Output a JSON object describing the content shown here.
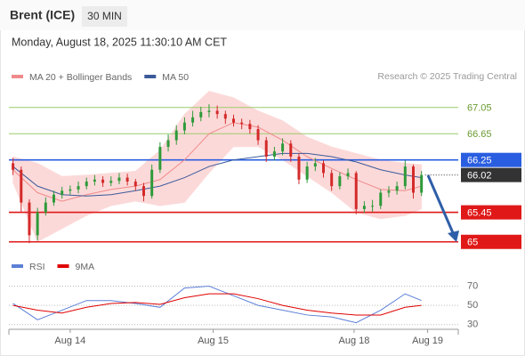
{
  "header": {
    "title": "Brent (ICE)",
    "timeframe": "30 MIN",
    "datetime": "Monday, August 18, 2025 11:30:10 AM CET",
    "source": "Research © 2025 Trading Central"
  },
  "chart_data": [
    {
      "type": "candlestick",
      "x": [
        1,
        3,
        5,
        7,
        9,
        11,
        13,
        15,
        17,
        19,
        21,
        23,
        25,
        27,
        29,
        31,
        33,
        35,
        37,
        39,
        41,
        43,
        45,
        47,
        49,
        51,
        53,
        55,
        57,
        59,
        61,
        63,
        65,
        67,
        69,
        71,
        73,
        75,
        77,
        79,
        81,
        83,
        85,
        87,
        89,
        91,
        93,
        95,
        97,
        99,
        101
      ],
      "open": [
        66.2,
        66.1,
        65.6,
        65.1,
        65.45,
        65.6,
        65.72,
        65.78,
        65.8,
        65.85,
        65.92,
        65.95,
        65.9,
        65.93,
        65.98,
        65.92,
        65.85,
        65.7,
        66.1,
        66.45,
        66.55,
        66.7,
        66.82,
        66.9,
        66.98,
        67.0,
        66.95,
        66.88,
        66.82,
        66.8,
        66.72,
        66.55,
        66.3,
        66.38,
        66.5,
        66.3,
        65.95,
        66.15,
        66.2,
        66.05,
        65.85,
        66.0,
        66.05,
        65.5,
        65.55,
        65.55,
        65.75,
        65.78,
        65.85,
        66.15,
        65.75
      ],
      "high": [
        66.28,
        66.15,
        65.65,
        65.52,
        65.68,
        65.78,
        65.84,
        65.86,
        65.92,
        65.98,
        66.02,
        66.0,
        66.0,
        66.05,
        66.04,
        65.96,
        65.9,
        66.18,
        66.52,
        66.64,
        66.78,
        66.9,
        67.0,
        67.06,
        67.1,
        67.08,
        67.0,
        66.94,
        66.88,
        66.86,
        66.78,
        66.6,
        66.45,
        66.58,
        66.55,
        66.35,
        66.22,
        66.28,
        66.24,
        66.1,
        66.06,
        66.12,
        66.08,
        65.62,
        65.64,
        65.8,
        65.85,
        65.92,
        66.24,
        66.18,
        66.08
      ],
      "low": [
        66.02,
        65.45,
        64.98,
        65.02,
        65.4,
        65.55,
        65.66,
        65.72,
        65.74,
        65.8,
        65.86,
        65.84,
        65.85,
        65.88,
        65.86,
        65.78,
        65.62,
        65.66,
        66.05,
        66.38,
        66.48,
        66.64,
        66.76,
        66.84,
        66.9,
        66.88,
        66.8,
        66.76,
        66.72,
        66.65,
        66.48,
        66.22,
        66.24,
        66.32,
        66.22,
        65.88,
        65.9,
        66.08,
        65.98,
        65.78,
        65.8,
        65.95,
        65.42,
        65.44,
        65.46,
        65.5,
        65.68,
        65.72,
        65.8,
        65.66,
        65.7
      ],
      "close": [
        66.1,
        65.6,
        65.1,
        65.45,
        65.6,
        65.72,
        65.78,
        65.8,
        65.85,
        65.92,
        65.95,
        65.9,
        65.93,
        65.98,
        65.92,
        65.85,
        65.7,
        66.1,
        66.45,
        66.55,
        66.7,
        66.82,
        66.9,
        66.98,
        67.0,
        66.95,
        66.88,
        66.82,
        66.8,
        66.72,
        66.55,
        66.3,
        66.38,
        66.5,
        66.3,
        65.95,
        66.15,
        66.2,
        66.05,
        65.85,
        66.0,
        66.05,
        65.5,
        65.55,
        65.55,
        65.75,
        65.78,
        65.85,
        66.15,
        65.75,
        66.02
      ],
      "up_color": "#2e9a3a",
      "down_color": "#d42a2a",
      "xlim": [
        0,
        110
      ],
      "ylim": [
        64.82,
        67.4
      ],
      "xticks": [
        {
          "value": 15,
          "label": "Aug 14"
        },
        {
          "value": 50,
          "label": "Aug 15"
        },
        {
          "value": 84.5,
          "label": "Aug 18"
        },
        {
          "value": 102.5,
          "label": "Aug 19"
        }
      ],
      "series": [
        {
          "name": "MA 20 + Bollinger Bands",
          "color": "#f08a8a",
          "x": [
            1,
            7,
            13,
            19,
            25,
            31,
            37,
            43,
            49,
            55,
            61,
            67,
            73,
            79,
            85,
            91,
            97,
            101
          ],
          "values": [
            66.1,
            65.75,
            65.62,
            65.72,
            65.8,
            65.85,
            65.95,
            66.25,
            66.65,
            66.82,
            66.75,
            66.55,
            66.3,
            66.12,
            65.95,
            65.8,
            65.78,
            65.85
          ],
          "band": {
            "color": "#fcd9d9",
            "upper": [
              66.3,
              66.2,
              66.0,
              66.02,
              66.05,
              66.08,
              66.4,
              66.95,
              67.3,
              67.2,
              67.0,
              66.85,
              66.6,
              66.45,
              66.35,
              66.25,
              66.2,
              66.18
            ],
            "lower": [
              65.9,
              65.0,
              65.2,
              65.4,
              65.55,
              65.62,
              65.55,
              65.6,
              66.05,
              66.45,
              66.45,
              66.25,
              66.0,
              65.75,
              65.45,
              65.35,
              65.4,
              65.5
            ]
          }
        },
        {
          "name": "MA 50",
          "color": "#3c5a9a",
          "x": [
            1,
            7,
            13,
            19,
            25,
            31,
            37,
            43,
            49,
            55,
            61,
            67,
            73,
            79,
            85,
            91,
            97,
            101
          ],
          "values": [
            66.15,
            65.85,
            65.72,
            65.7,
            65.72,
            65.78,
            65.85,
            65.98,
            66.15,
            66.25,
            66.3,
            66.35,
            66.35,
            66.3,
            66.22,
            66.1,
            66.02,
            65.98
          ]
        }
      ],
      "levels": [
        {
          "value": 67.05,
          "color": "#9ccc6a",
          "boxed": false
        },
        {
          "value": 66.65,
          "color": "#9ccc6a",
          "boxed": false
        },
        {
          "value": 66.25,
          "color": "#2a5ee0",
          "boxed": true
        },
        {
          "value": 65.45,
          "color": "#e01818",
          "boxed": true
        },
        {
          "value": 65.0,
          "color": "#e01818",
          "boxed": true
        }
      ],
      "last_price": 66.02,
      "last_color": "#333333"
    },
    {
      "type": "line",
      "x": [
        1,
        7,
        13,
        19,
        25,
        31,
        37,
        43,
        49,
        55,
        61,
        67,
        73,
        79,
        85,
        91,
        97,
        101
      ],
      "series": [
        {
          "name": "RSI",
          "color": "#5b7fd6",
          "values": [
            52,
            35,
            45,
            55,
            55,
            52,
            48,
            68,
            70,
            60,
            50,
            45,
            40,
            38,
            32,
            45,
            62,
            55
          ]
        },
        {
          "name": "9MA",
          "color": "#e00000",
          "values": [
            50,
            45,
            42,
            48,
            52,
            53,
            51,
            58,
            62,
            62,
            57,
            50,
            45,
            42,
            40,
            40,
            48,
            50
          ]
        }
      ],
      "xlim": [
        0,
        110
      ],
      "ylim": [
        27,
        76
      ],
      "yticks": [
        30,
        50,
        70
      ]
    }
  ]
}
